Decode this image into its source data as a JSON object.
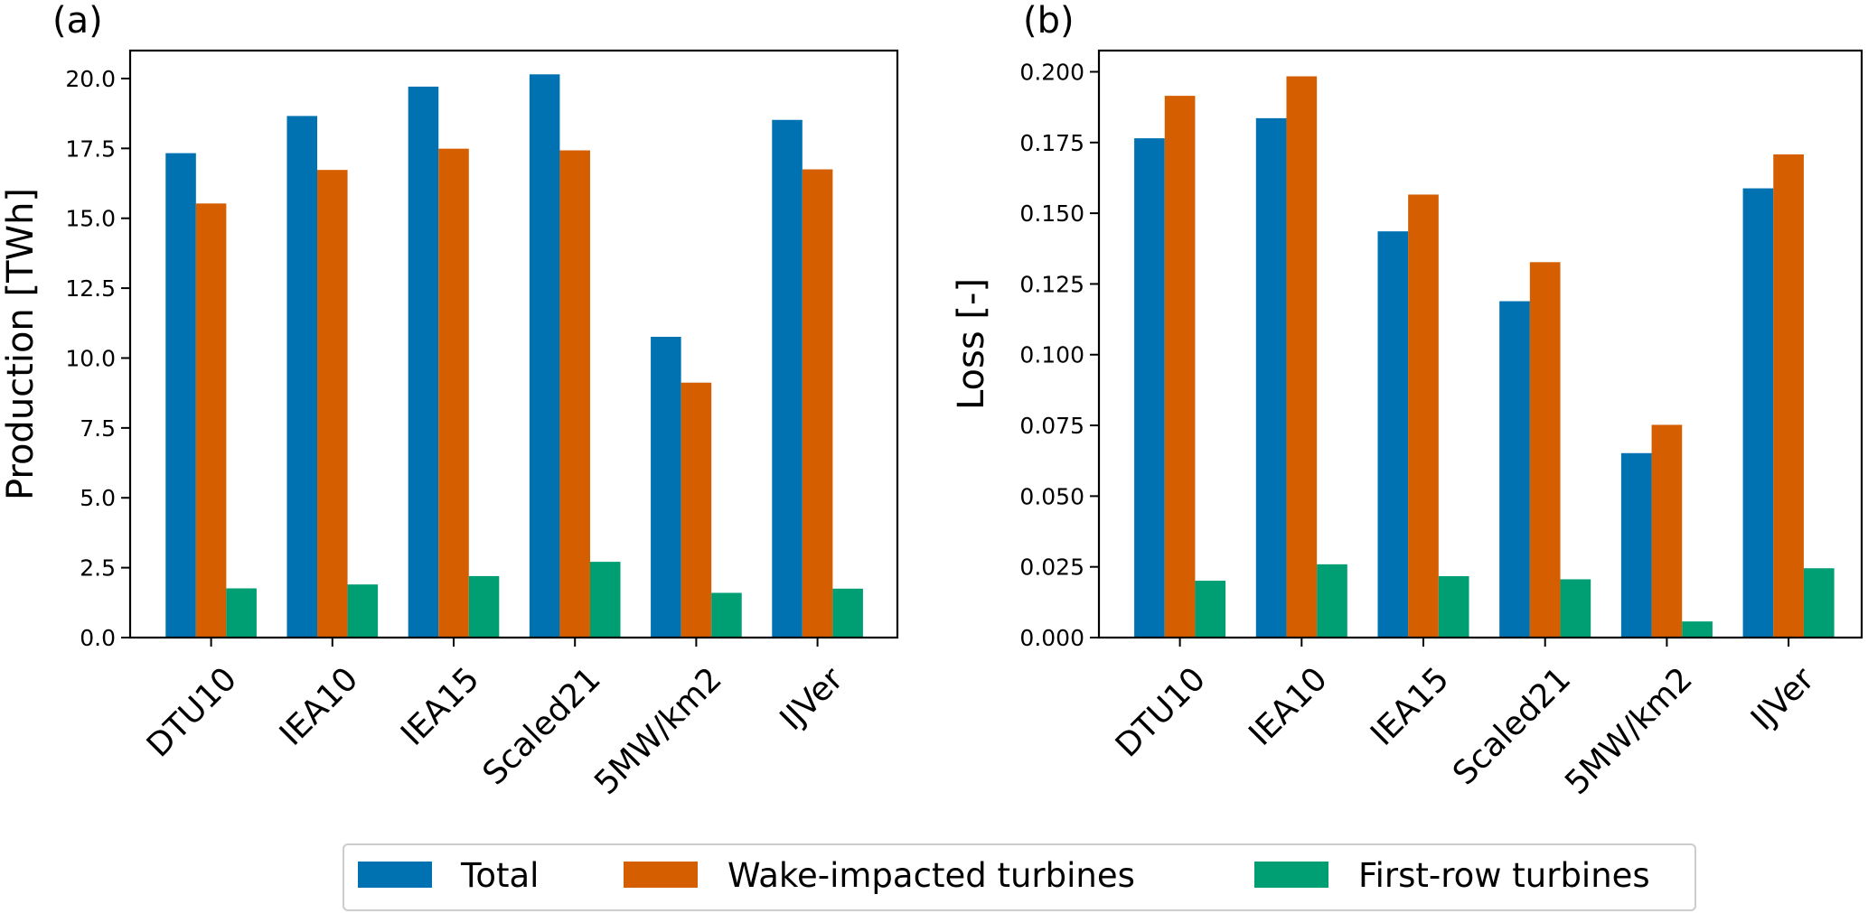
{
  "chart_data": [
    {
      "type": "bar",
      "panel_label": "(a)",
      "title": "",
      "xlabel": "",
      "ylabel": "Production [TWh]",
      "ylim": [
        0,
        21.0
      ],
      "yticks": [
        0.0,
        2.5,
        5.0,
        7.5,
        10.0,
        12.5,
        15.0,
        17.5,
        20.0
      ],
      "ytick_labels": [
        "0.0",
        "2.5",
        "5.0",
        "7.5",
        "10.0",
        "12.5",
        "15.0",
        "17.5",
        "20.0"
      ],
      "categories": [
        "DTU10",
        "IEA10",
        "IEA15",
        "Scaled21",
        "5MW/km2",
        "IJVer"
      ],
      "series": [
        {
          "name": "Total",
          "color": "#0072b2",
          "values": [
            17.33,
            18.66,
            19.71,
            20.15,
            10.76,
            18.52
          ]
        },
        {
          "name": "Wake-impacted turbines",
          "color": "#d55e00",
          "values": [
            15.53,
            16.73,
            17.49,
            17.43,
            9.12,
            16.75
          ]
        },
        {
          "name": "First-row turbines",
          "color": "#009e73",
          "values": [
            1.76,
            1.9,
            2.2,
            2.71,
            1.6,
            1.75
          ]
        }
      ],
      "grid": false
    },
    {
      "type": "bar",
      "panel_label": "(b)",
      "title": "",
      "xlabel": "",
      "ylabel": "Loss [-]",
      "ylim": [
        0,
        0.2075
      ],
      "yticks": [
        0.0,
        0.025,
        0.05,
        0.075,
        0.1,
        0.125,
        0.15,
        0.175,
        0.2
      ],
      "ytick_labels": [
        "0.000",
        "0.025",
        "0.050",
        "0.075",
        "0.100",
        "0.125",
        "0.150",
        "0.175",
        "0.200"
      ],
      "categories": [
        "DTU10",
        "IEA10",
        "IEA15",
        "Scaled21",
        "5MW/km2",
        "IJVer"
      ],
      "series": [
        {
          "name": "Total",
          "color": "#0072b2",
          "values": [
            0.1765,
            0.1836,
            0.1436,
            0.1189,
            0.0652,
            0.1588
          ]
        },
        {
          "name": "Wake-impacted turbines",
          "color": "#d55e00",
          "values": [
            0.1915,
            0.1984,
            0.1566,
            0.1327,
            0.0752,
            0.1708
          ]
        },
        {
          "name": "First-row turbines",
          "color": "#009e73",
          "values": [
            0.0201,
            0.0259,
            0.0217,
            0.0206,
            0.0057,
            0.0245
          ]
        }
      ],
      "grid": false
    }
  ],
  "legend": {
    "placement": "bottom-center",
    "entries": [
      {
        "label": "Total",
        "color": "#0072b2"
      },
      {
        "label": "Wake-impacted turbines",
        "color": "#d55e00"
      },
      {
        "label": "First-row turbines",
        "color": "#009e73"
      }
    ]
  }
}
